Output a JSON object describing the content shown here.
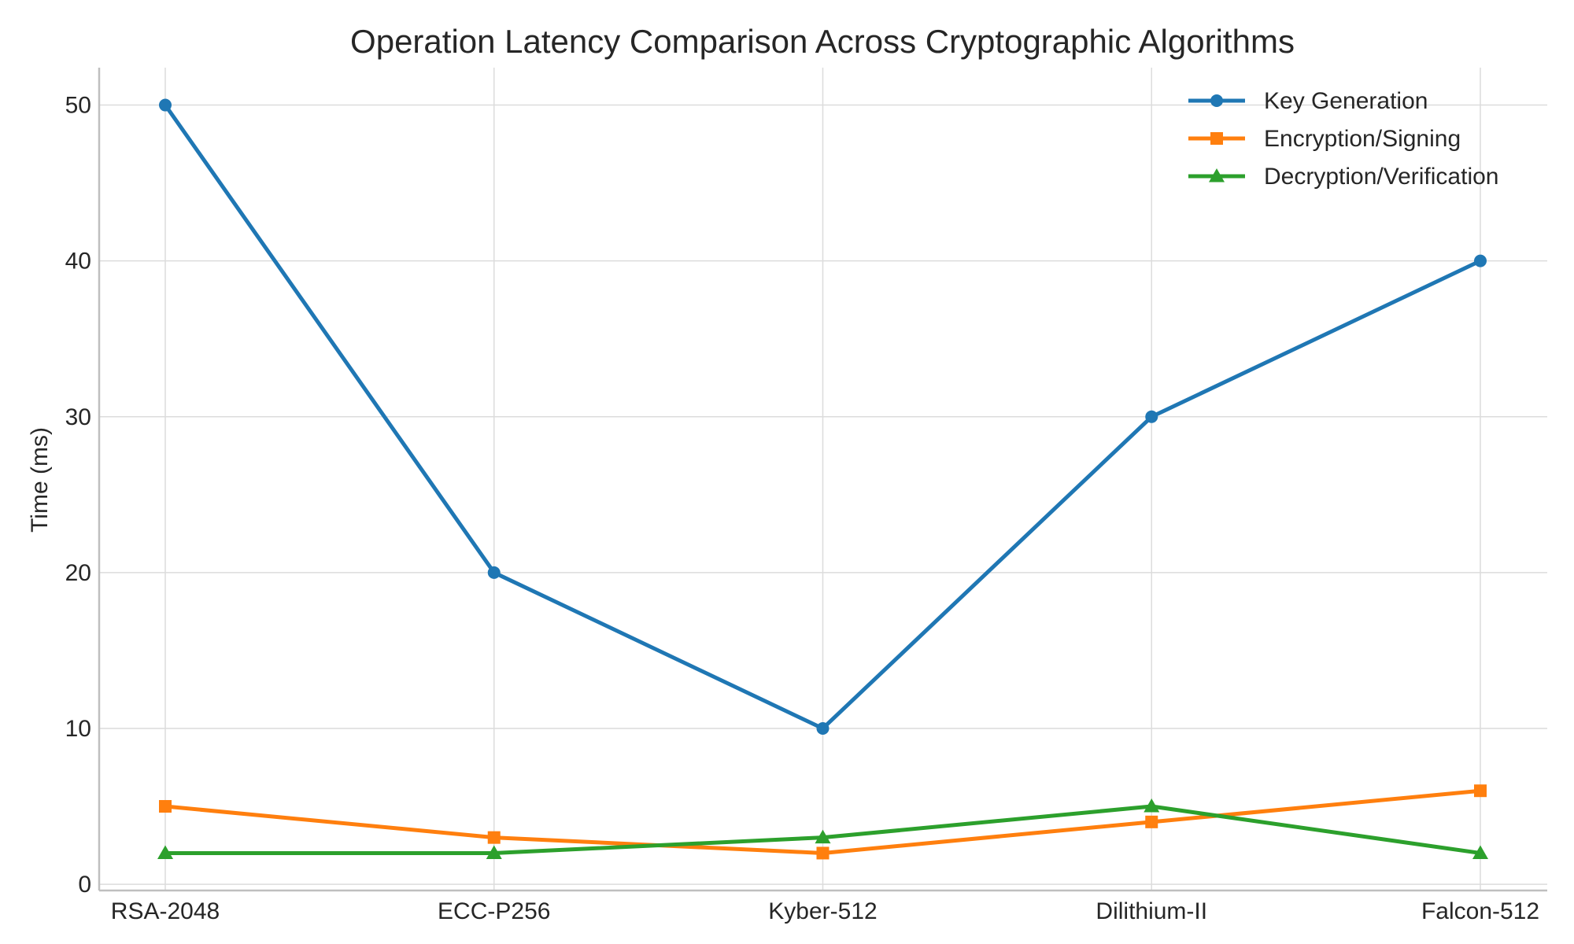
{
  "chart_data": {
    "type": "line",
    "title": "Operation Latency Comparison Across Cryptographic Algorithms",
    "xlabel": "",
    "ylabel": "Time (ms)",
    "categories": [
      "RSA-2048",
      "ECC-P256",
      "Kyber-512",
      "Dilithium-II",
      "Falcon-512"
    ],
    "ylim": [
      -0.4,
      52.4
    ],
    "yticks": [
      0,
      10,
      20,
      30,
      40,
      50
    ],
    "grid": true,
    "legend_position": "top-right",
    "series": [
      {
        "name": "Key Generation",
        "values": [
          50,
          20,
          10,
          30,
          40
        ],
        "color": "#1f77b4",
        "marker": "circle"
      },
      {
        "name": "Encryption/Signing",
        "values": [
          5,
          3,
          2,
          4,
          6
        ],
        "color": "#ff7f0e",
        "marker": "square"
      },
      {
        "name": "Decryption/Verification",
        "values": [
          2,
          2,
          3,
          5,
          2
        ],
        "color": "#2ca02c",
        "marker": "triangle"
      }
    ]
  }
}
